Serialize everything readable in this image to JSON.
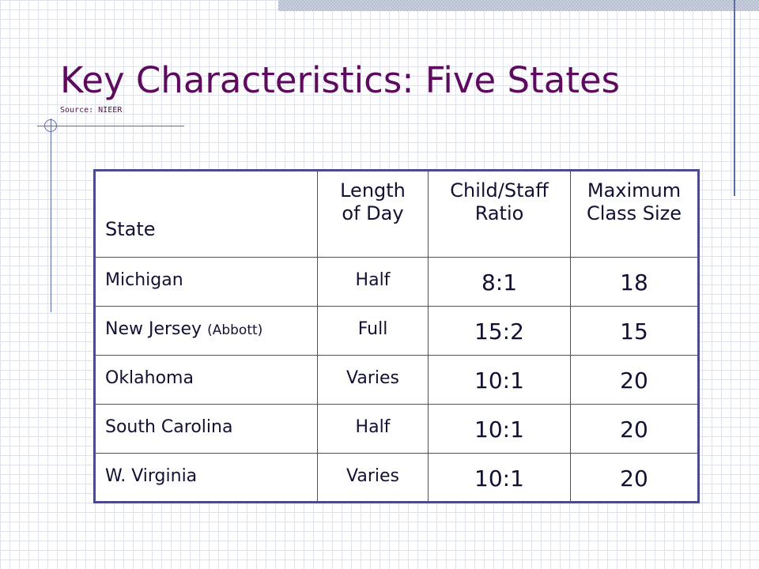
{
  "slide": {
    "title": "Key Characteristics: Five States",
    "source": "Source: NIEER"
  },
  "table": {
    "headers": {
      "state": "State",
      "length": [
        "Length",
        "of Day"
      ],
      "ratio": [
        "Child/Staff",
        "Ratio"
      ],
      "max": [
        "Maximum",
        "Class Size"
      ]
    },
    "rows": [
      {
        "state": "Michigan",
        "note": "",
        "length": "Half",
        "ratio": "8:1",
        "max": "18"
      },
      {
        "state": "New Jersey",
        "note": "(Abbott)",
        "length": "Full",
        "ratio": "15:2",
        "max": "15"
      },
      {
        "state": "Oklahoma",
        "note": "",
        "length": "Varies",
        "ratio": "10:1",
        "max": "20"
      },
      {
        "state": "South Carolina",
        "note": "",
        "length": "Half",
        "ratio": "10:1",
        "max": "20"
      },
      {
        "state": "W. Virginia",
        "note": "",
        "length": "Varies",
        "ratio": "10:1",
        "max": "20"
      }
    ]
  },
  "colors": {
    "title": "#5e0a5e",
    "table_border": "#4a4a8c",
    "accent_lines": "#5d6aa8"
  }
}
